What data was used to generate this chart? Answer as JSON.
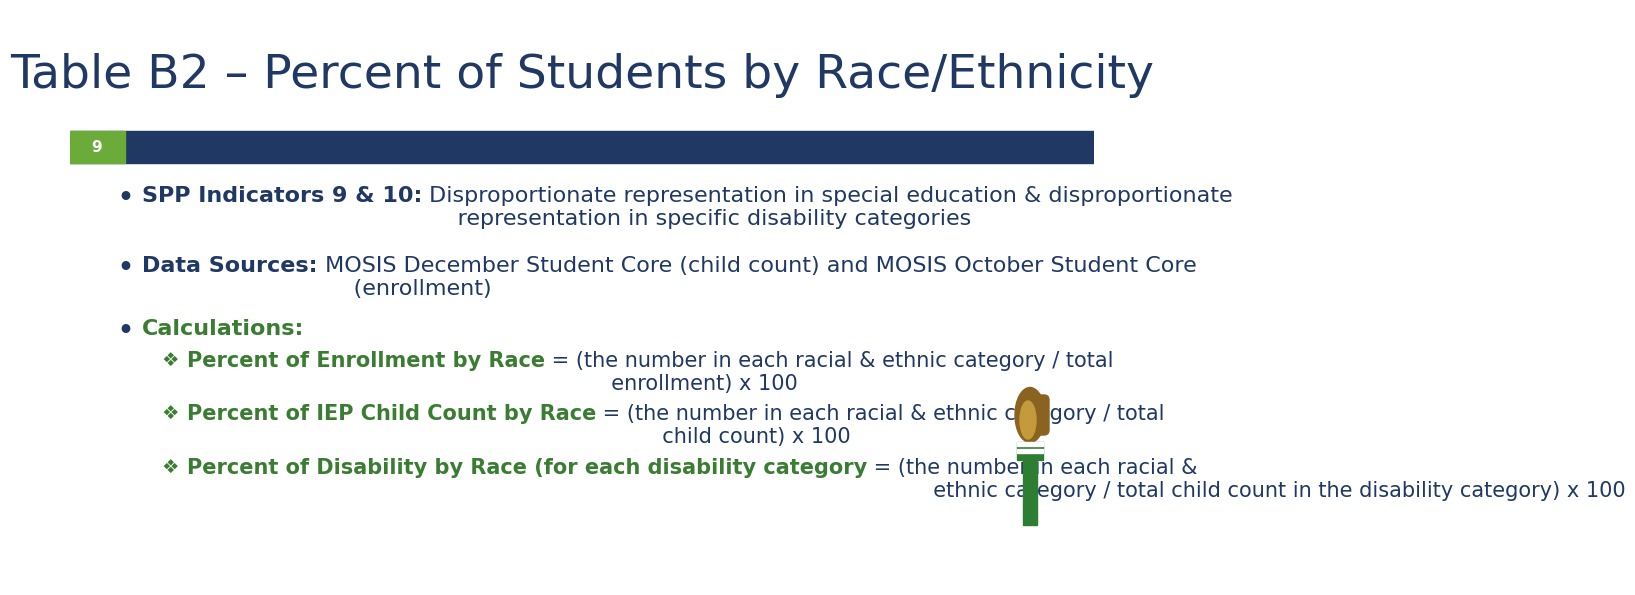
{
  "title": "Table B2 – Percent of Students by Race/Ethnicity",
  "title_color": "#1F3864",
  "title_fontsize": 34,
  "slide_number": "9",
  "slide_number_bg": "#6AAB3A",
  "header_bar_color": "#1F3864",
  "background_color": "#FFFFFF",
  "bullet_color": "#1F3864",
  "green_color": "#3A7D32",
  "bullet_fontsize": 16,
  "sub_bullet_fontsize": 15,
  "bullet1_bold": "SPP Indicators 9 & 10:",
  "bullet1_normal": " Disproportionate representation in special education & disproportionate\n     representation in specific disability categories",
  "bullet2_bold": "Data Sources:",
  "bullet2_normal": " MOSIS December Student Core (child count) and MOSIS October Student Core\n     (enrollment)",
  "bullet3_bold": "Calculations:",
  "sub1_bold": "Percent of Enrollment by Race",
  "sub1_normal": " = (the number in each racial & ethnic category / total\n          enrollment) x 100",
  "sub2_bold": "Percent of IEP Child Count by Race",
  "sub2_normal": " = (the number in each racial & ethnic category / total\n          child count) x 100",
  "sub3_bold": "Percent of Disability by Race (for each disability category",
  "sub3_normal": " = (the number in each racial &\n          ethnic category / total child count in the disability category) x 100",
  "flame_color1": "#8B6320",
  "flame_color2": "#C49A3C",
  "torch_green": "#2D7D32"
}
